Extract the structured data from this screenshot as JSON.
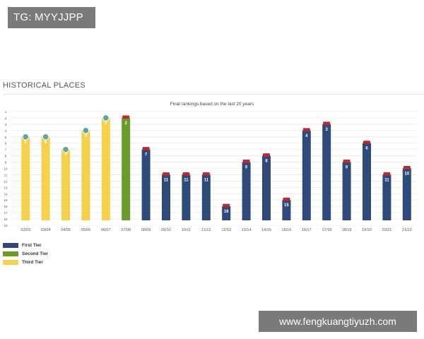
{
  "badge": {
    "text": "TG: MYYJJPP"
  },
  "section": {
    "title": "HISTORICAL PLACES"
  },
  "watermark": {
    "text": "www.fengkuangtiyuzh.com"
  },
  "colors": {
    "first": "#2e4a7a",
    "second": "#6a9a2a",
    "third": "#f5d04a",
    "marker_third": "#5aa89a",
    "marker_first": "#c0272d"
  },
  "chart_data": {
    "type": "bar",
    "title": "Final rankings based on the last 20 years",
    "xlabel": "",
    "ylabel": "",
    "ylim": [
      1,
      19
    ],
    "y_inverted": true,
    "yticks": [
      1,
      2,
      3,
      4,
      5,
      6,
      7,
      8,
      9,
      10,
      11,
      12,
      13,
      14,
      15,
      16,
      17,
      18,
      19
    ],
    "categories": [
      "02/03",
      "03/04",
      "04/05",
      "05/06",
      "06/07",
      "07/08",
      "08/09",
      "09/10",
      "10/11",
      "11/12",
      "12/13",
      "13/14",
      "14/15",
      "15/16",
      "16/17",
      "17/18",
      "18/19",
      "19/20",
      "20/21",
      "21/22"
    ],
    "values": [
      5,
      5,
      7,
      4,
      2,
      2,
      7,
      11,
      11,
      11,
      16,
      9,
      8,
      15,
      4,
      3,
      9,
      6,
      11,
      10
    ],
    "tiers": [
      "Third Tier",
      "Third Tier",
      "Third Tier",
      "Third Tier",
      "Third Tier",
      "Second Tier",
      "First Tier",
      "First Tier",
      "First Tier",
      "First Tier",
      "First Tier",
      "First Tier",
      "First Tier",
      "First Tier",
      "First Tier",
      "First Tier",
      "First Tier",
      "First Tier",
      "First Tier",
      "First Tier"
    ],
    "legend": [
      {
        "name": "First Tier",
        "color": "#2e4a7a"
      },
      {
        "name": "Second Tier",
        "color": "#6a9a2a"
      },
      {
        "name": "Third Tier",
        "color": "#f5d04a"
      }
    ],
    "grid": true,
    "legend_position": "bottom-left"
  }
}
